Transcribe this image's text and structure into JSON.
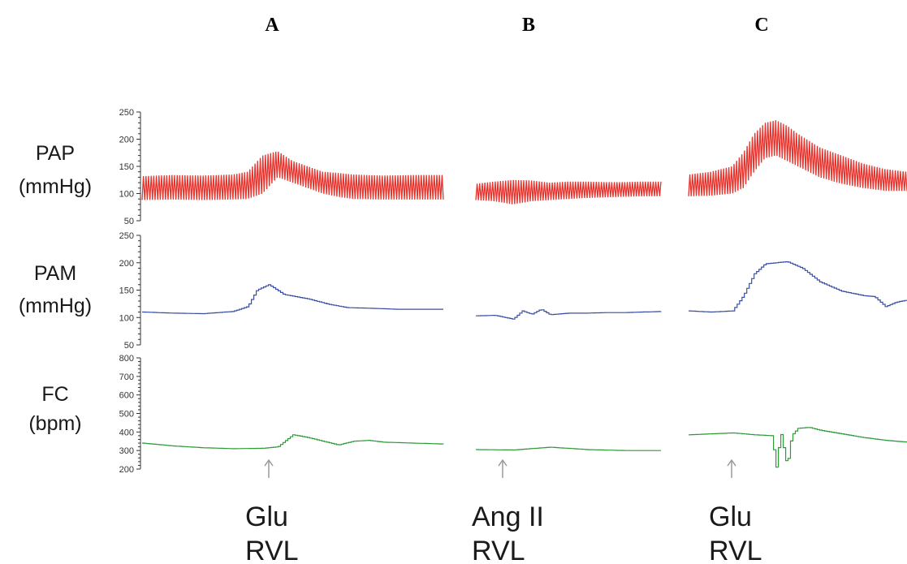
{
  "panels": [
    {
      "letter": "A",
      "stimulus": [
        "Glu",
        "RVL"
      ]
    },
    {
      "letter": "B",
      "stimulus": [
        "Ang II",
        "RVL"
      ]
    },
    {
      "letter": "C",
      "stimulus": [
        "Glu",
        "RVL"
      ]
    }
  ],
  "rows": [
    {
      "label": [
        "PAP",
        "(mmHg)"
      ],
      "color": "#e8322c",
      "ticks": [
        50,
        100,
        150,
        200,
        250
      ],
      "ylim": [
        50,
        250
      ]
    },
    {
      "label": [
        "PAM",
        "(mmHg)"
      ],
      "color": "#3a4fa0",
      "ticks": [
        50,
        100,
        150,
        200,
        250
      ],
      "ylim": [
        50,
        250
      ]
    },
    {
      "label": [
        "FC",
        "(bpm)"
      ],
      "color": "#2e9a3a",
      "ticks": [
        200,
        300,
        400,
        500,
        600,
        700,
        800
      ],
      "ylim": [
        200,
        800
      ]
    }
  ],
  "arrow_color": "#9a9a9a",
  "chart_data": [
    {
      "type": "line",
      "panel": "A",
      "row": "PAP",
      "x": [
        0,
        0.1,
        0.2,
        0.3,
        0.35,
        0.4,
        0.45,
        0.5,
        0.6,
        0.65,
        0.7,
        0.8,
        0.9,
        1.0
      ],
      "y_min": [
        88,
        89,
        88,
        89,
        90,
        100,
        130,
        120,
        100,
        94,
        90,
        89,
        89,
        89
      ],
      "y_max": [
        132,
        134,
        133,
        135,
        140,
        170,
        178,
        160,
        140,
        138,
        135,
        133,
        134,
        134
      ],
      "ylim": [
        50,
        250
      ]
    },
    {
      "type": "line",
      "panel": "B",
      "row": "PAP",
      "x": [
        0,
        0.1,
        0.2,
        0.3,
        0.4,
        0.5,
        0.6,
        0.7,
        0.8,
        0.9,
        1.0
      ],
      "y_min": [
        88,
        86,
        80,
        86,
        88,
        90,
        92,
        93,
        94,
        95,
        95
      ],
      "y_max": [
        118,
        122,
        125,
        124,
        120,
        122,
        122,
        121,
        121,
        122,
        122
      ],
      "ylim": [
        50,
        250
      ]
    },
    {
      "type": "line",
      "panel": "C",
      "row": "PAP",
      "x": [
        0,
        0.1,
        0.2,
        0.25,
        0.3,
        0.35,
        0.4,
        0.45,
        0.5,
        0.6,
        0.7,
        0.8,
        0.9,
        1.0
      ],
      "y_min": [
        95,
        96,
        100,
        110,
        140,
        165,
        170,
        160,
        150,
        130,
        118,
        110,
        105,
        105
      ],
      "y_max": [
        135,
        140,
        150,
        175,
        210,
        230,
        235,
        225,
        210,
        185,
        170,
        155,
        145,
        140
      ],
      "ylim": [
        50,
        250
      ]
    },
    {
      "type": "line",
      "panel": "A",
      "row": "PAM",
      "x": [
        0,
        0.1,
        0.2,
        0.3,
        0.35,
        0.38,
        0.42,
        0.47,
        0.55,
        0.62,
        0.68,
        0.75,
        0.85,
        1.0
      ],
      "y": [
        110,
        108,
        107,
        111,
        120,
        150,
        160,
        142,
        134,
        124,
        118,
        117,
        115,
        115
      ],
      "ylim": [
        50,
        250
      ]
    },
    {
      "type": "line",
      "panel": "B",
      "row": "PAM",
      "x": [
        0,
        0.1,
        0.2,
        0.25,
        0.3,
        0.35,
        0.4,
        0.5,
        0.6,
        0.7,
        0.8,
        0.9,
        1.0
      ],
      "y": [
        103,
        104,
        97,
        112,
        106,
        115,
        105,
        108,
        108,
        109,
        109,
        110,
        111
      ],
      "ylim": [
        50,
        250
      ]
    },
    {
      "type": "line",
      "panel": "C",
      "row": "PAM",
      "x": [
        0,
        0.1,
        0.2,
        0.25,
        0.3,
        0.35,
        0.45,
        0.52,
        0.6,
        0.7,
        0.8,
        0.85,
        0.9,
        0.95,
        1.0
      ],
      "y": [
        112,
        110,
        112,
        140,
        180,
        198,
        202,
        190,
        165,
        148,
        140,
        138,
        120,
        128,
        132
      ],
      "ylim": [
        50,
        250
      ]
    },
    {
      "type": "line",
      "panel": "A",
      "row": "FC",
      "x": [
        0,
        0.1,
        0.2,
        0.3,
        0.4,
        0.45,
        0.5,
        0.55,
        0.6,
        0.65,
        0.7,
        0.75,
        0.8,
        0.9,
        1.0
      ],
      "y": [
        340,
        325,
        315,
        310,
        312,
        320,
        385,
        370,
        350,
        330,
        350,
        355,
        345,
        340,
        335
      ],
      "ylim": [
        200,
        800
      ]
    },
    {
      "type": "line",
      "panel": "B",
      "row": "FC",
      "x": [
        0,
        0.2,
        0.4,
        0.6,
        0.8,
        1.0
      ],
      "y": [
        305,
        303,
        318,
        305,
        300,
        300
      ],
      "ylim": [
        200,
        800
      ]
    },
    {
      "type": "line",
      "panel": "C",
      "row": "FC",
      "x": [
        0,
        0.1,
        0.2,
        0.3,
        0.38,
        0.4,
        0.42,
        0.45,
        0.47,
        0.5,
        0.55,
        0.6,
        0.7,
        0.8,
        0.9,
        1.0
      ],
      "y": [
        385,
        390,
        395,
        385,
        380,
        210,
        400,
        210,
        380,
        420,
        425,
        410,
        390,
        370,
        355,
        345
      ],
      "ylim": [
        200,
        800
      ]
    }
  ]
}
